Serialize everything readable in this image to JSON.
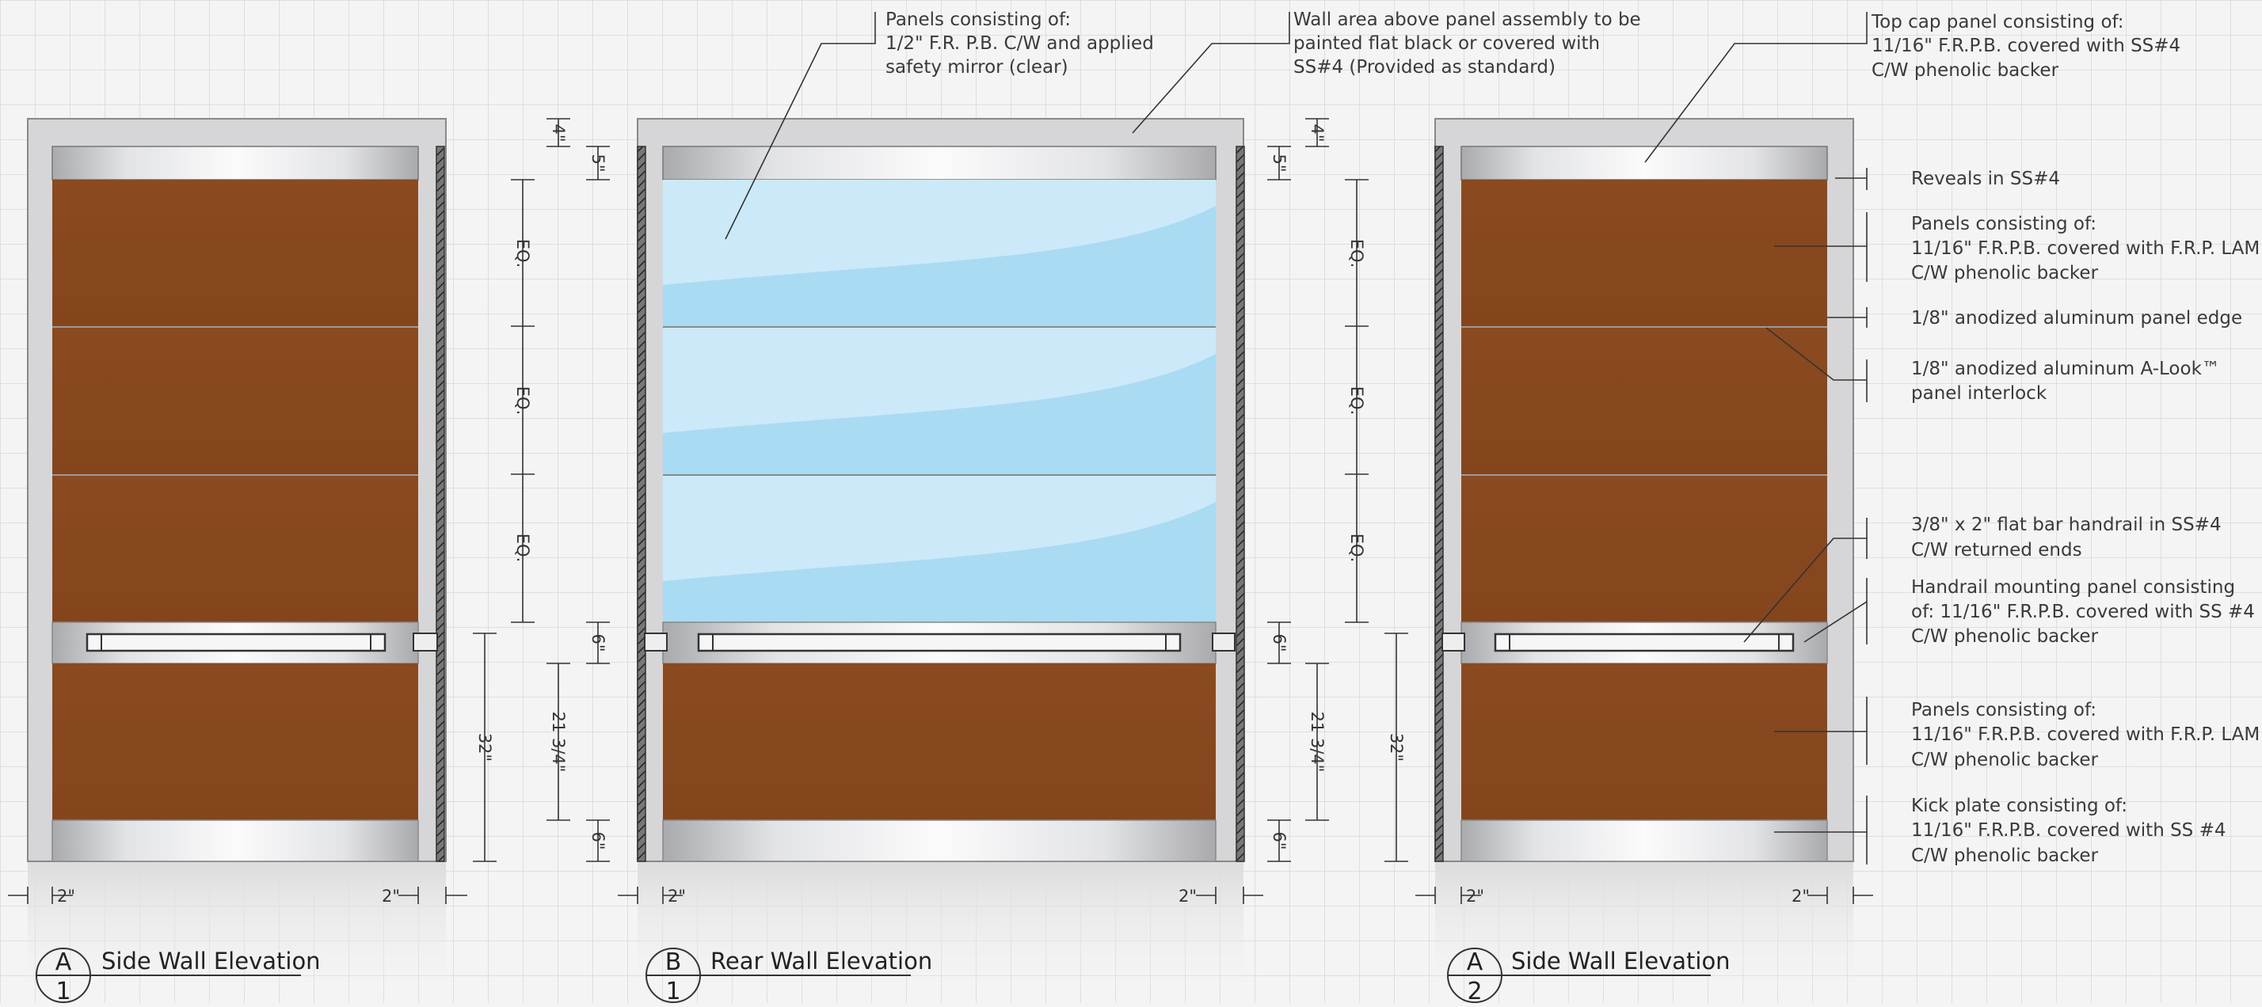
{
  "colors": {
    "panel_wood": "#8b4a20",
    "frame_gray": "#d4d4d6",
    "steel": "#c9cacc",
    "mirror": "#bfe3f7",
    "grid": "#d8d8d8",
    "line": "#333333"
  },
  "elevations": [
    {
      "letter": "A",
      "number": "1",
      "title": "Side Wall Elevation"
    },
    {
      "letter": "B",
      "number": "1",
      "title": "Rear Wall Elevation"
    },
    {
      "letter": "A",
      "number": "2",
      "title": "Side Wall Elevation"
    }
  ],
  "dimensions": {
    "top_cap": "4\"",
    "reveal_top": "5\"",
    "equal": "EQ.",
    "handrail_panel": "6\"",
    "lower_panel": "21 3/4\"",
    "kick_plate": "6\"",
    "handrail_height": "32\"",
    "side_reveal": "2\""
  },
  "callouts": {
    "mirror_panels": [
      "Panels consisting of:",
      "1/2\" F.R. P.B. C/W and applied",
      "safety mirror (clear)"
    ],
    "wall_area": [
      "Wall area above panel assembly to be",
      "painted flat black or covered with",
      "SS#4 (Provided as standard)"
    ],
    "top_cap": [
      "Top cap panel consisting of:",
      "11/16\" F.R.P.B. covered with SS#4",
      "C/W phenolic backer"
    ],
    "reveals": [
      "Reveals in SS#4"
    ],
    "panels_upper": [
      "Panels consisting of:",
      "11/16\" F.R.P.B. covered with F.R.P. LAM",
      "C/W phenolic backer"
    ],
    "panel_edge": [
      "1/8\" anodized aluminum panel edge"
    ],
    "interlock": [
      "1/8\" anodized aluminum A-Look™",
      "panel interlock"
    ],
    "handrail": [
      "3/8\" x 2\" flat bar handrail in SS#4",
      "C/W returned ends"
    ],
    "mounting_panel": [
      "Handrail mounting panel consisting",
      "of: 11/16\" F.R.P.B. covered with SS #4",
      "C/W phenolic backer"
    ],
    "panels_lower": [
      "Panels consisting of:",
      "11/16\" F.R.P.B. covered with F.R.P. LAM",
      "C/W phenolic backer"
    ],
    "kick_plate": [
      "Kick plate consisting of:",
      "11/16\" F.R.P.B. covered with SS #4",
      "C/W phenolic backer"
    ]
  }
}
